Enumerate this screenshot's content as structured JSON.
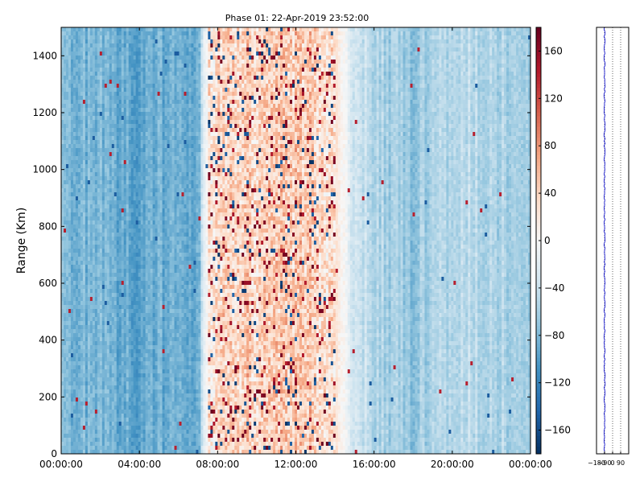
{
  "chart_data": [
    {
      "type": "heatmap",
      "title": "Phase 01: 22-Apr-2019 23:52:00",
      "ylabel": "Range (Km)",
      "xlabel": "",
      "x_ticks": [
        "00:00:00",
        "04:00:00",
        "08:00:00",
        "12:00:00",
        "16:00:00",
        "20:00:00",
        "00:00:00"
      ],
      "x_range_hours": [
        0,
        24
      ],
      "y_ticks": [
        0,
        200,
        400,
        600,
        800,
        1000,
        1200,
        1400
      ],
      "ylim": [
        0,
        1500
      ],
      "colorbar": {
        "ticks": [
          160,
          120,
          80,
          40,
          0,
          -40,
          -80,
          -120,
          -160
        ],
        "range": [
          -180,
          180
        ],
        "colormap": "RdBu_r",
        "low_color": "#053061",
        "mid_color": "#f7f7f7",
        "high_color": "#67001f"
      },
      "phase_profile_by_hour": [
        {
          "hour": 0,
          "phase": -75
        },
        {
          "hour": 1,
          "phase": -82
        },
        {
          "hour": 2,
          "phase": -85
        },
        {
          "hour": 3,
          "phase": -92
        },
        {
          "hour": 4,
          "phase": -95
        },
        {
          "hour": 5,
          "phase": -90
        },
        {
          "hour": 6,
          "phase": -88
        },
        {
          "hour": 7,
          "phase": -95
        },
        {
          "hour": 7.5,
          "phase": 20
        },
        {
          "hour": 8,
          "phase": 35
        },
        {
          "hour": 9,
          "phase": 45
        },
        {
          "hour": 10,
          "phase": 40
        },
        {
          "hour": 11,
          "phase": 50
        },
        {
          "hour": 12,
          "phase": 45
        },
        {
          "hour": 13,
          "phase": 40
        },
        {
          "hour": 14,
          "phase": 25
        },
        {
          "hour": 15,
          "phase": -30
        },
        {
          "hour": 16,
          "phase": -55
        },
        {
          "hour": 17,
          "phase": -62
        },
        {
          "hour": 18,
          "phase": -70
        },
        {
          "hour": 19,
          "phase": -58
        },
        {
          "hour": 20,
          "phase": -50
        },
        {
          "hour": 21,
          "phase": -48
        },
        {
          "hour": 22,
          "phase": -55
        },
        {
          "hour": 23,
          "phase": -60
        },
        {
          "hour": 24,
          "phase": -62
        }
      ],
      "noisy_period_hours": [
        7.5,
        14
      ]
    },
    {
      "type": "line",
      "title": "",
      "x_ticks": [
        "-180",
        "-90",
        "0",
        "90"
      ],
      "xlim": [
        -180,
        180
      ],
      "ylim": [
        0,
        1500
      ],
      "profile_mean_phase": -90,
      "grid_lines_x": [
        -90,
        0,
        90
      ],
      "line_color": "#0000cc"
    }
  ]
}
